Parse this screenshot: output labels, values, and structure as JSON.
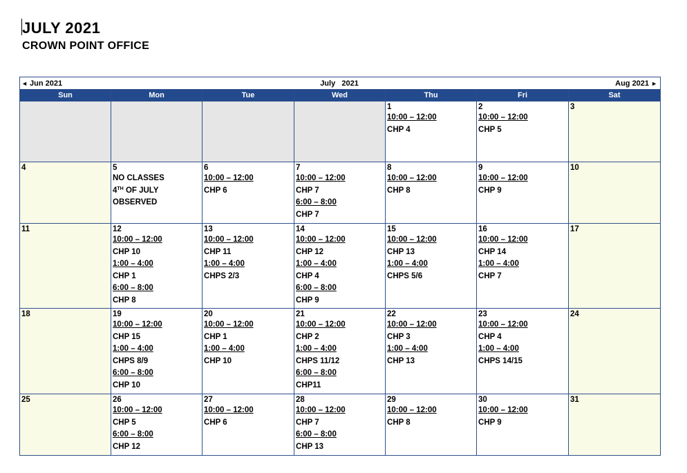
{
  "doc": {
    "title": "JULY 2021",
    "subtitle": "CROWN POINT OFFICE"
  },
  "nav": {
    "prev_arrow": "◄",
    "prev_label": "Jun 2021",
    "month_label": "July   2021",
    "next_label": "Aug 2021",
    "next_arrow": "►"
  },
  "weekdays": [
    "Sun",
    "Mon",
    "Tue",
    "Wed",
    "Thu",
    "Fri",
    "Sat"
  ],
  "colors": {
    "header_blue": "#234a8d",
    "border_blue": "#2d4f8c",
    "weekend_fill": "#fafbe7",
    "empty_fill": "#e6e6e6"
  },
  "weeks": [
    [
      {
        "day": "",
        "lines": []
      },
      {
        "day": "",
        "lines": []
      },
      {
        "day": "",
        "lines": []
      },
      {
        "day": "",
        "lines": []
      },
      {
        "day": "1",
        "lines": [
          {
            "text": "10:00 – 12:00",
            "time": true
          },
          {
            "text": "CHP 4"
          }
        ]
      },
      {
        "day": "2",
        "lines": [
          {
            "text": "10:00 – 12:00",
            "time": true
          },
          {
            "text": "CHP 5"
          }
        ]
      },
      {
        "day": "3",
        "lines": []
      }
    ],
    [
      {
        "day": "4",
        "lines": []
      },
      {
        "day": "5",
        "lines": [
          {
            "text": "NO CLASSES"
          },
          {
            "text": "4",
            "sup": "TH",
            "rest": " OF JULY"
          },
          {
            "text": "OBSERVED"
          }
        ]
      },
      {
        "day": "6",
        "lines": [
          {
            "text": "10:00 – 12:00",
            "time": true
          },
          {
            "text": "CHP 6"
          }
        ]
      },
      {
        "day": "7",
        "lines": [
          {
            "text": "10:00 – 12:00",
            "time": true
          },
          {
            "text": "CHP 7"
          },
          {
            "text": "6:00 – 8:00",
            "time": true
          },
          {
            "text": "CHP 7"
          }
        ]
      },
      {
        "day": "8",
        "lines": [
          {
            "text": "10:00 – 12:00",
            "time": true
          },
          {
            "text": "CHP 8"
          }
        ]
      },
      {
        "day": "9",
        "lines": [
          {
            "text": "10:00 – 12:00",
            "time": true
          },
          {
            "text": "CHP 9"
          }
        ]
      },
      {
        "day": "10",
        "lines": []
      }
    ],
    [
      {
        "day": "11",
        "lines": []
      },
      {
        "day": "12",
        "lines": [
          {
            "text": "10:00 – 12:00",
            "time": true
          },
          {
            "text": "CHP 10"
          },
          {
            "text": "1:00 – 4:00",
            "time": true
          },
          {
            "text": "CHP 1"
          },
          {
            "text": "6:00 – 8:00",
            "time": true
          },
          {
            "text": "CHP 8"
          }
        ]
      },
      {
        "day": "13",
        "lines": [
          {
            "text": "10:00 – 12:00",
            "time": true
          },
          {
            "text": "CHP 11"
          },
          {
            "text": "1:00 – 4:00",
            "time": true
          },
          {
            "text": "CHPS 2/3"
          }
        ]
      },
      {
        "day": "14",
        "lines": [
          {
            "text": "10:00 – 12:00",
            "time": true
          },
          {
            "text": "CHP 12"
          },
          {
            "text": "1:00 – 4:00",
            "time": true
          },
          {
            "text": "CHP 4"
          },
          {
            "text": "6:00 – 8:00",
            "time": true
          },
          {
            "text": "CHP 9"
          }
        ]
      },
      {
        "day": "15",
        "lines": [
          {
            "text": "10:00 – 12:00",
            "time": true
          },
          {
            "text": "CHP 13"
          },
          {
            "text": "1:00 – 4:00",
            "time": true
          },
          {
            "text": "CHPS 5/6"
          }
        ]
      },
      {
        "day": "16",
        "lines": [
          {
            "text": "10:00 – 12:00",
            "time": true
          },
          {
            "text": "CHP 14"
          },
          {
            "text": "1:00 – 4:00",
            "time": true
          },
          {
            "text": "CHP 7"
          }
        ]
      },
      {
        "day": "17",
        "lines": []
      }
    ],
    [
      {
        "day": "18",
        "lines": []
      },
      {
        "day": "19",
        "lines": [
          {
            "text": "10:00 – 12:00",
            "time": true
          },
          {
            "text": "CHP 15"
          },
          {
            "text": "1:00 – 4:00",
            "time": true
          },
          {
            "text": "CHPS 8/9"
          },
          {
            "text": "6:00 – 8:00",
            "time": true
          },
          {
            "text": "CHP 10"
          }
        ]
      },
      {
        "day": "20",
        "lines": [
          {
            "text": "10:00 – 12:00",
            "time": true
          },
          {
            "text": "CHP 1"
          },
          {
            "text": "1:00 – 4:00",
            "time": true
          },
          {
            "text": "CHP 10"
          }
        ]
      },
      {
        "day": "21",
        "lines": [
          {
            "text": "10:00 – 12:00",
            "time": true
          },
          {
            "text": "CHP 2"
          },
          {
            "text": "1:00 – 4:00",
            "time": true
          },
          {
            "text": "CHPS 11/12"
          },
          {
            "text": "6:00 – 8:00",
            "time": true
          },
          {
            "text": "CHP11"
          }
        ]
      },
      {
        "day": "22",
        "lines": [
          {
            "text": "10:00 – 12:00",
            "time": true
          },
          {
            "text": "CHP 3"
          },
          {
            "text": "1:00 – 4:00",
            "time": true
          },
          {
            "text": "CHP 13"
          }
        ]
      },
      {
        "day": "23",
        "lines": [
          {
            "text": "10:00 – 12:00",
            "time": true
          },
          {
            "text": "CHP 4"
          },
          {
            "text": "1:00 – 4:00",
            "time": true
          },
          {
            "text": "CHPS 14/15"
          }
        ]
      },
      {
        "day": "24",
        "lines": []
      }
    ],
    [
      {
        "day": "25",
        "lines": []
      },
      {
        "day": "26",
        "lines": [
          {
            "text": "10:00 – 12:00",
            "time": true
          },
          {
            "text": "CHP 5"
          },
          {
            "text": "6:00 – 8:00",
            "time": true
          },
          {
            "text": "CHP 12"
          }
        ]
      },
      {
        "day": "27",
        "lines": [
          {
            "text": "10:00 – 12:00",
            "time": true
          },
          {
            "text": "CHP 6"
          }
        ]
      },
      {
        "day": "28",
        "lines": [
          {
            "text": "10:00 – 12:00",
            "time": true
          },
          {
            "text": "CHP 7"
          },
          {
            "text": "6:00 – 8:00",
            "time": true
          },
          {
            "text": "CHP 13"
          }
        ]
      },
      {
        "day": "29",
        "lines": [
          {
            "text": "10:00 – 12:00",
            "time": true
          },
          {
            "text": "CHP 8"
          }
        ]
      },
      {
        "day": "30",
        "lines": [
          {
            "text": "10:00 – 12:00",
            "time": true
          },
          {
            "text": "CHP 9"
          }
        ]
      },
      {
        "day": "31",
        "lines": []
      }
    ]
  ]
}
